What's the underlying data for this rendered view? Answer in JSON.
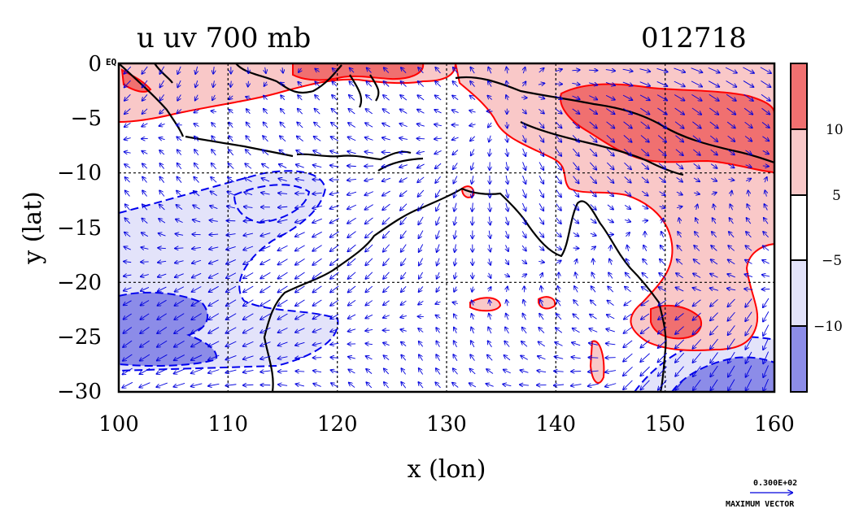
{
  "header": {
    "title": "u uv 700 mb",
    "timestamp": "012718"
  },
  "axes": {
    "xlabel": "x (lon)",
    "ylabel": "y (lat)",
    "x_ticks": [
      "100",
      "110",
      "120",
      "130",
      "140",
      "150",
      "160"
    ],
    "y_ticks": [
      "0",
      "−5",
      "−10",
      "−15",
      "−20",
      "−25",
      "−30"
    ],
    "x_range": [
      100,
      160
    ],
    "y_range": [
      -30,
      0
    ],
    "eq_label": "EQ",
    "grid": true
  },
  "colorbar": {
    "labels": [
      "10",
      "5",
      "−5",
      "−10"
    ],
    "segment_colors": [
      "#f07070",
      "#f9c8c8",
      "#ffffff",
      "#e3e3fa",
      "#8c8ce8"
    ]
  },
  "vector_key": {
    "value": "0.300E+02",
    "label": "MAXIMUM VECTOR"
  },
  "colors": {
    "positive_contour": "#ff0000",
    "negative_contour": "#0000ee",
    "vectors": "#0000dd",
    "coast": "#000000",
    "strong_positive": "#f07070",
    "weak_positive": "#f9c8c8",
    "weak_negative": "#e3e3fa",
    "strong_negative": "#8c8ce8"
  }
}
